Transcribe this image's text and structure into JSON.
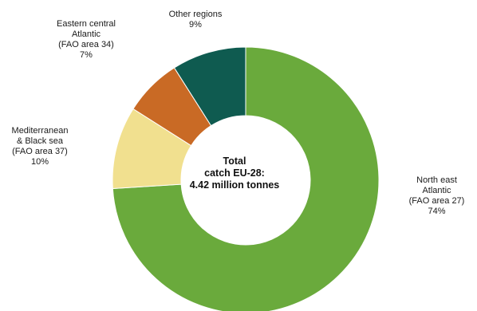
{
  "chart_data": {
    "type": "pie",
    "variant": "donut",
    "series": [
      {
        "name": "North east Atlantic",
        "value": 74,
        "color": "#6aaa3c",
        "label_lines": [
          "North east",
          "Atlantic",
          "(FAO area 27)",
          "74%"
        ]
      },
      {
        "name": "Mediterranean & Black sea",
        "value": 10,
        "color": "#f1e08f",
        "label_lines": [
          "Mediterranean",
          "& Black sea",
          "(FAO area 37)",
          "10%"
        ]
      },
      {
        "name": "Eastern central Atlantic",
        "value": 7,
        "color": "#c96a25",
        "label_lines": [
          "Eastern central",
          "Atlantic",
          "(FAO area 34)",
          "7%"
        ]
      },
      {
        "name": "Other regions",
        "value": 9,
        "color": "#0f5b50",
        "label_lines": [
          "Other regions",
          "9%"
        ]
      }
    ],
    "center_label_lines": [
      "Total",
      "catch EU-28:",
      "4.42 million tonnes"
    ]
  }
}
